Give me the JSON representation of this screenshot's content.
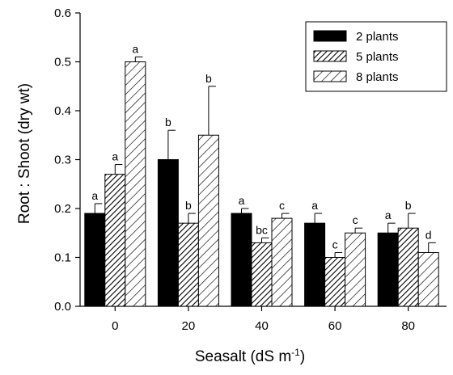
{
  "chart_data": {
    "type": "bar",
    "xlabel": "Seasalt (dS m",
    "xlabel_sup": "-1",
    "xlabel_end": ")",
    "ylabel": "Root : Shoot  (dry wt)",
    "categories": [
      "0",
      "20",
      "40",
      "60",
      "80"
    ],
    "ylim": [
      0.0,
      0.6
    ],
    "yticks": [
      "0.0",
      "0.1",
      "0.2",
      "0.3",
      "0.4",
      "0.5",
      "0.6"
    ],
    "legend_position": "top-right",
    "series": [
      {
        "name": "2 plants",
        "pattern": "solid",
        "color": "#000000",
        "values": [
          0.19,
          0.3,
          0.19,
          0.17,
          0.15
        ],
        "errors": [
          0.02,
          0.06,
          0.01,
          0.02,
          0.02
        ],
        "labels": [
          "a",
          "b",
          "a",
          "a",
          "a"
        ]
      },
      {
        "name": "5 plants",
        "pattern": "dense-hatch",
        "color": "#000000",
        "values": [
          0.27,
          0.17,
          0.13,
          0.1,
          0.16
        ],
        "errors": [
          0.02,
          0.02,
          0.01,
          0.01,
          0.03
        ],
        "labels": [
          "a",
          "b",
          "bc",
          "c",
          "b"
        ]
      },
      {
        "name": "8 plants",
        "pattern": "sparse-hatch",
        "color": "#000000",
        "values": [
          0.5,
          0.35,
          0.18,
          0.15,
          0.11
        ],
        "errors": [
          0.01,
          0.1,
          0.01,
          0.01,
          0.02
        ],
        "labels": [
          "a",
          "b",
          "c",
          "c",
          "d"
        ]
      }
    ]
  }
}
